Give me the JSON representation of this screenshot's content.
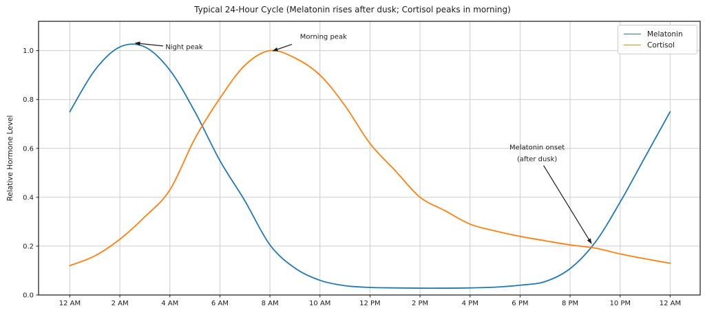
{
  "chart_data": {
    "type": "line",
    "title": "Typical 24-Hour Cycle (Melatonin rises after dusk; Cortisol peaks in morning)",
    "xlabel": "",
    "ylabel": "Relative Hormone Level",
    "xlim": [
      -1.25,
      25.2
    ],
    "ylim": [
      0,
      1.12
    ],
    "grid": true,
    "legend_position": "upper right",
    "x_ticks": [
      {
        "hour": 0,
        "label": "12 AM"
      },
      {
        "hour": 2,
        "label": "2 AM"
      },
      {
        "hour": 4,
        "label": "4 AM"
      },
      {
        "hour": 6,
        "label": "6 AM"
      },
      {
        "hour": 8,
        "label": "8 AM"
      },
      {
        "hour": 10,
        "label": "10 AM"
      },
      {
        "hour": 12,
        "label": "12 PM"
      },
      {
        "hour": 14,
        "label": "2 PM"
      },
      {
        "hour": 16,
        "label": "4 PM"
      },
      {
        "hour": 18,
        "label": "6 PM"
      },
      {
        "hour": 20,
        "label": "8 PM"
      },
      {
        "hour": 22,
        "label": "10 PM"
      },
      {
        "hour": 24,
        "label": "12 AM"
      }
    ],
    "y_ticks": [
      {
        "value": 0.0,
        "label": "0.0"
      },
      {
        "value": 0.2,
        "label": "0.2"
      },
      {
        "value": 0.4,
        "label": "0.4"
      },
      {
        "value": 0.6,
        "label": "0.6"
      },
      {
        "value": 0.8,
        "label": "0.8"
      },
      {
        "value": 1.0,
        "label": "1.0"
      }
    ],
    "x": [
      0,
      1,
      2,
      3,
      4,
      5,
      6,
      7,
      8,
      9,
      10,
      11,
      12,
      13,
      14,
      15,
      16,
      17,
      18,
      19,
      20,
      21,
      22,
      23,
      24
    ],
    "series": [
      {
        "name": "Melatonin",
        "color": "#1f77b4",
        "values": [
          0.75,
          0.92,
          1.015,
          1.015,
          0.92,
          0.75,
          0.55,
          0.385,
          0.205,
          0.11,
          0.06,
          0.038,
          0.031,
          0.029,
          0.028,
          0.028,
          0.029,
          0.032,
          0.04,
          0.055,
          0.108,
          0.215,
          0.38,
          0.565,
          0.75
        ]
      },
      {
        "name": "Cortisol",
        "color": "#ff7f0e",
        "values": [
          0.12,
          0.16,
          0.228,
          0.32,
          0.43,
          0.64,
          0.805,
          0.94,
          1.0,
          0.97,
          0.9,
          0.775,
          0.62,
          0.51,
          0.4,
          0.345,
          0.29,
          0.262,
          0.24,
          0.222,
          0.205,
          0.192,
          0.168,
          0.148,
          0.13
        ]
      }
    ],
    "annotations": [
      {
        "id": "night-peak",
        "text": "Night peak",
        "xy": [
          2.62,
          1.031
        ],
        "tail": [
          3.73,
          1.019
        ],
        "text_xy": [
          3.82,
          1.012
        ],
        "align": "left"
      },
      {
        "id": "morning-peak",
        "text": "Morning peak",
        "xy": [
          8.12,
          0.999
        ],
        "tail": [
          8.88,
          1.026
        ],
        "text_xy": [
          10.14,
          1.056
        ],
        "align": "center"
      },
      {
        "id": "melatonin-onset",
        "lines": [
          "Melatonin onset",
          "(after dusk)"
        ],
        "xy": [
          20.85,
          0.211
        ],
        "tail": [
          18.94,
          0.53
        ],
        "text_xy": [
          18.68,
          0.578
        ],
        "align": "center"
      }
    ],
    "colors": {
      "grid": "#cccccc",
      "spine": "#262626",
      "text": "#1a1a1a",
      "background": "#ffffff",
      "legend_border": "#cccccc"
    }
  }
}
